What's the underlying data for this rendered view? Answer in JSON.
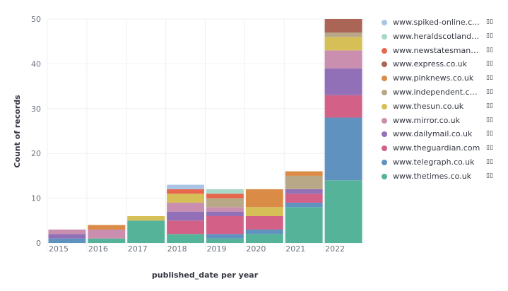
{
  "chart_data": {
    "type": "bar",
    "stacked": true,
    "xlabel": "published_date per year",
    "ylabel": "Count of records",
    "ylim": [
      0,
      50
    ],
    "yticks": [
      0,
      10,
      20,
      30,
      40,
      50
    ],
    "grid": true,
    "legend_position": "right",
    "categories": [
      "2015",
      "2016",
      "2017",
      "2018",
      "2019",
      "2020",
      "2021",
      "2022"
    ],
    "series": [
      {
        "name": "www.thetimes.co.uk",
        "color": "#54b399",
        "values": [
          0,
          1,
          5,
          2,
          1,
          2,
          8,
          14
        ]
      },
      {
        "name": "www.telegraph.co.uk",
        "color": "#6092c0",
        "values": [
          1,
          0,
          0,
          0,
          1,
          1,
          1,
          14
        ]
      },
      {
        "name": "www.theguardian.com",
        "color": "#d36086",
        "values": [
          0,
          0,
          0,
          3,
          4,
          3,
          2,
          5
        ]
      },
      {
        "name": "www.dailymail.co.uk",
        "color": "#9170b8",
        "values": [
          1,
          0,
          0,
          2,
          1,
          0,
          1,
          6
        ]
      },
      {
        "name": "www.mirror.co.uk",
        "color": "#ca8eae",
        "values": [
          1,
          2,
          0,
          2,
          1,
          0,
          0,
          4
        ]
      },
      {
        "name": "www.thesun.co.uk",
        "color": "#d6bf57",
        "values": [
          0,
          0,
          1,
          2,
          0,
          2,
          0,
          3
        ]
      },
      {
        "name": "www.independent.co.uk",
        "color": "#b9a888",
        "values": [
          0,
          0,
          0,
          0,
          2,
          0,
          3,
          1
        ]
      },
      {
        "name": "www.pinknews.co.uk",
        "color": "#da8b45",
        "values": [
          0,
          1,
          0,
          0,
          0,
          4,
          1,
          0
        ]
      },
      {
        "name": "www.express.co.uk",
        "color": "#aa6556",
        "values": [
          0,
          0,
          0,
          0,
          0,
          0,
          0,
          3
        ]
      },
      {
        "name": "www.newstatesman.com",
        "color": "#e7664c",
        "values": [
          0,
          0,
          0,
          1,
          1,
          0,
          0,
          0
        ]
      },
      {
        "name": "www.heraldscotland.com",
        "color": "#a8d8c8",
        "values": [
          0,
          0,
          0,
          0,
          1,
          0,
          0,
          0
        ]
      },
      {
        "name": "www.spiked-online.com",
        "color": "#a9c5e5",
        "values": [
          0,
          0,
          0,
          1,
          0,
          0,
          0,
          0
        ]
      }
    ]
  },
  "legend": {
    "items": [
      {
        "label": "www.spiked-online.c...",
        "color": "#a9c5e5",
        "action": "▯▯"
      },
      {
        "label": "www.heraldscotland....",
        "color": "#a8d8c8",
        "action": "▯▯"
      },
      {
        "label": "www.newstatesman....",
        "color": "#e7664c",
        "action": "▯▯"
      },
      {
        "label": "www.express.co.uk",
        "color": "#aa6556",
        "action": "▯▯"
      },
      {
        "label": "www.pinknews.co.uk",
        "color": "#da8b45",
        "action": "▯▯"
      },
      {
        "label": "www.independent.co....",
        "color": "#b9a888",
        "action": "▯▯"
      },
      {
        "label": "www.thesun.co.uk",
        "color": "#d6bf57",
        "action": "▯▯"
      },
      {
        "label": "www.mirror.co.uk",
        "color": "#ca8eae",
        "action": "▯▯"
      },
      {
        "label": "www.dailymail.co.uk",
        "color": "#9170b8",
        "action": "▯▯"
      },
      {
        "label": "www.theguardian.com",
        "color": "#d36086",
        "action": "▯▯"
      },
      {
        "label": "www.telegraph.co.uk",
        "color": "#6092c0",
        "action": "▯▯"
      },
      {
        "label": "www.thetimes.co.uk",
        "color": "#54b399",
        "action": "▯▯"
      }
    ]
  }
}
